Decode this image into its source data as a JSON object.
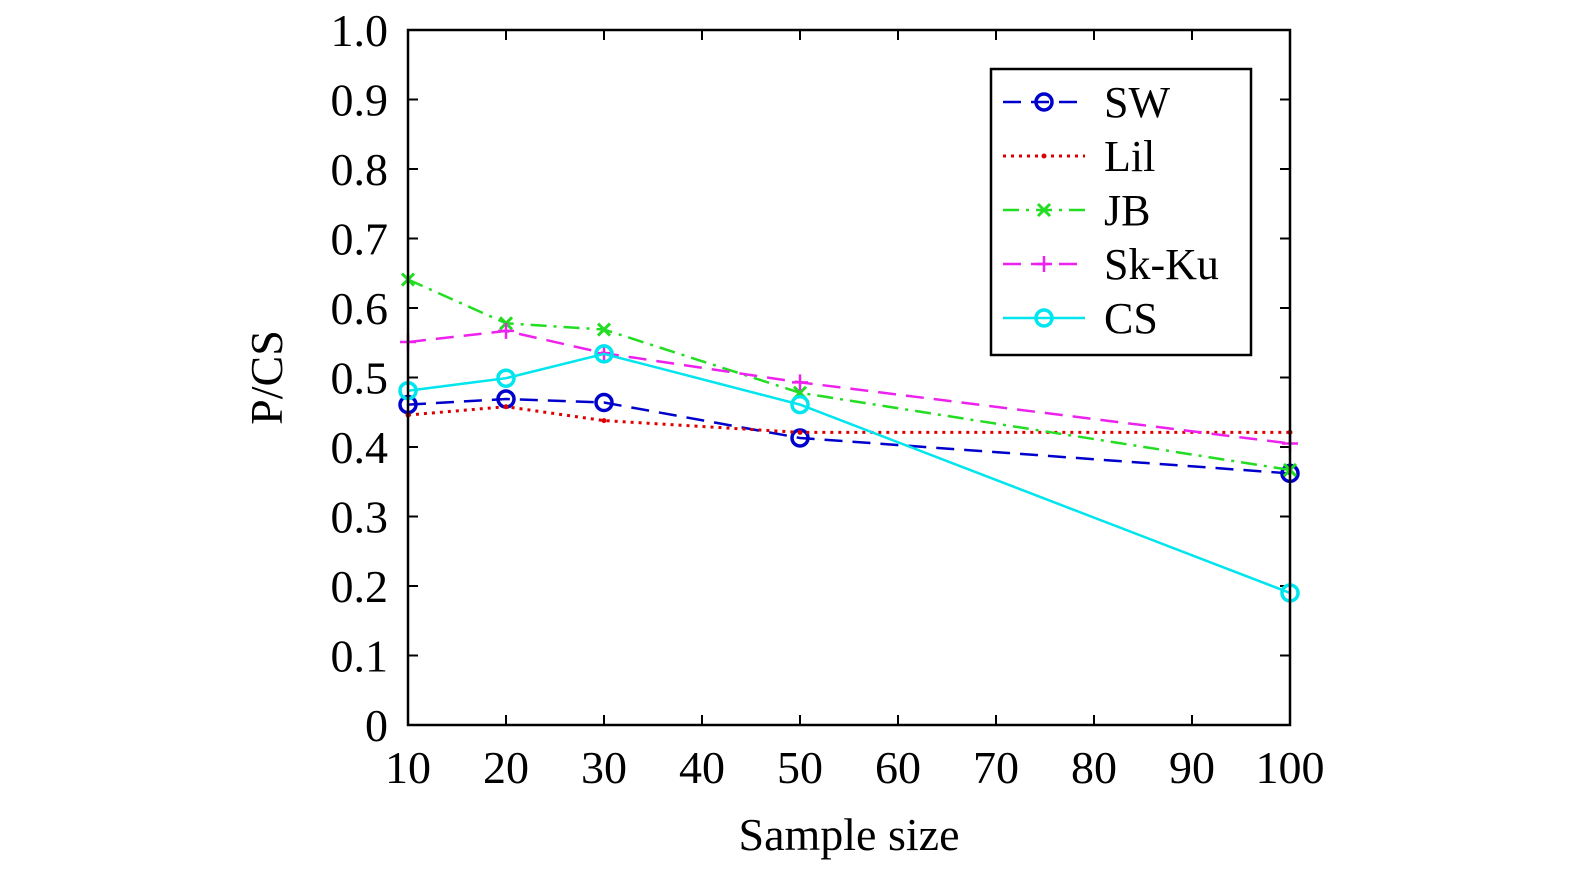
{
  "chart_data": {
    "type": "line",
    "title": "",
    "xlabel": "Sample size",
    "ylabel": "P/CS",
    "x_ticks": [
      "10",
      "20",
      "30",
      "40",
      "50",
      "60",
      "70",
      "80",
      "90",
      "100"
    ],
    "y_ticks": [
      "0",
      "0.1",
      "0.2",
      "0.3",
      "0.4",
      "0.5",
      "0.6",
      "0.7",
      "0.8",
      "0.9",
      "1.0"
    ],
    "x": [
      10,
      20,
      30,
      50,
      100
    ],
    "xlim": [
      10,
      100
    ],
    "ylim": [
      0,
      1
    ],
    "grid": false,
    "legend_position": "top-right",
    "series": [
      {
        "name": "SW",
        "values": [
          0.461,
          0.469,
          0.464,
          0.413,
          0.362
        ],
        "color": "#0000cc",
        "line_style": "dashed",
        "marker": "circle"
      },
      {
        "name": "Lil",
        "values": [
          0.446,
          0.458,
          0.438,
          0.421,
          0.421
        ],
        "color": "#dd0000",
        "line_style": "dotted",
        "marker": "dot"
      },
      {
        "name": "JB",
        "values": [
          0.641,
          0.578,
          0.569,
          0.478,
          0.367
        ],
        "color": "#22dd22",
        "line_style": "dashdot",
        "marker": "x"
      },
      {
        "name": "Sk-Ku",
        "values": [
          0.551,
          0.567,
          0.535,
          0.493,
          0.405
        ],
        "color": "#ee22ee",
        "line_style": "dashed",
        "marker": "plus"
      },
      {
        "name": "CS",
        "values": [
          0.481,
          0.499,
          0.534,
          0.461,
          0.19
        ],
        "color": "#00e5ee",
        "line_style": "solid",
        "marker": "circle"
      }
    ]
  }
}
